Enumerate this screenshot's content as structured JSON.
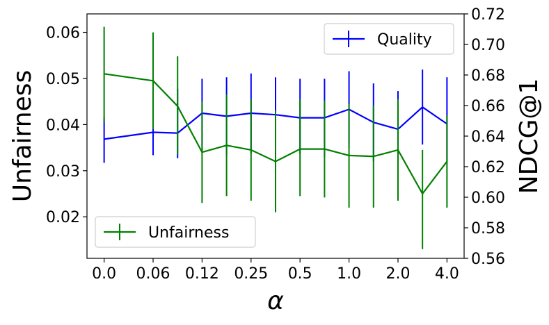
{
  "chart_data": {
    "type": "line",
    "title": "",
    "xlabel": "α",
    "ylabel_left": "Unfairness",
    "ylabel_right": "NDCG@1",
    "x_tick_labels": [
      "0.0",
      "0.06",
      "0.12",
      "0.25",
      "0.5",
      "1.0",
      "2.0",
      "4.0"
    ],
    "x_positions": [
      0,
      1,
      2,
      3,
      4,
      5,
      6,
      7,
      8,
      9,
      10,
      11,
      12,
      13,
      14
    ],
    "x_tick_at": [
      0,
      2,
      4,
      6,
      8,
      10,
      12,
      14
    ],
    "xlim": [
      -0.7,
      14.7
    ],
    "ylim_left": [
      0.011,
      0.064
    ],
    "ylim_right": [
      0.56,
      0.72
    ],
    "yticks_left": [
      "0.02",
      "0.03",
      "0.04",
      "0.05",
      "0.06"
    ],
    "yticks_right": [
      "0.56",
      "0.58",
      "0.60",
      "0.62",
      "0.64",
      "0.66",
      "0.68",
      "0.70",
      "0.72"
    ],
    "grid": false,
    "series": [
      {
        "name": "Quality",
        "axis": "right",
        "color": "#0000ff",
        "values": [
          0.638,
          0.6425,
          0.642,
          0.655,
          0.653,
          0.655,
          0.654,
          0.652,
          0.652,
          0.6575,
          0.649,
          0.6445,
          0.659,
          0.648
        ],
        "x": [
          0,
          2,
          3,
          4,
          5,
          6,
          7,
          8,
          9,
          10,
          11,
          12,
          13,
          14
        ],
        "err_low": [
          0.6225,
          0.6275,
          0.6255,
          0.6305,
          0.6275,
          0.6285,
          0.6275,
          0.6285,
          0.6265,
          0.6325,
          0.6235,
          0.6235,
          0.6345,
          0.6235
        ],
        "err_high": [
          0.6525,
          0.669,
          0.671,
          0.6775,
          0.6785,
          0.681,
          0.6785,
          0.6775,
          0.6775,
          0.6825,
          0.6745,
          0.6695,
          0.6835,
          0.6785
        ],
        "legend_loc": "upper right"
      },
      {
        "name": "Unfairness",
        "axis": "left",
        "color": "#008000",
        "values": [
          0.051,
          0.0495,
          0.044,
          0.034,
          0.0355,
          0.0345,
          0.032,
          0.0347,
          0.0347,
          0.0333,
          0.0331,
          0.0345,
          0.025,
          0.032
        ],
        "x": [
          0,
          2,
          3,
          4,
          5,
          6,
          7,
          8,
          9,
          10,
          11,
          12,
          13,
          14
        ],
        "err_low": [
          0.0405,
          0.039,
          0.0335,
          0.023,
          0.0245,
          0.0235,
          0.021,
          0.0245,
          0.0242,
          0.022,
          0.022,
          0.0235,
          0.013,
          0.022
        ],
        "err_high": [
          0.0612,
          0.06,
          0.0548,
          0.045,
          0.0465,
          0.0455,
          0.043,
          0.0455,
          0.0452,
          0.0445,
          0.0442,
          0.0455,
          0.0345,
          0.042
        ],
        "legend_loc": "lower left"
      }
    ]
  }
}
